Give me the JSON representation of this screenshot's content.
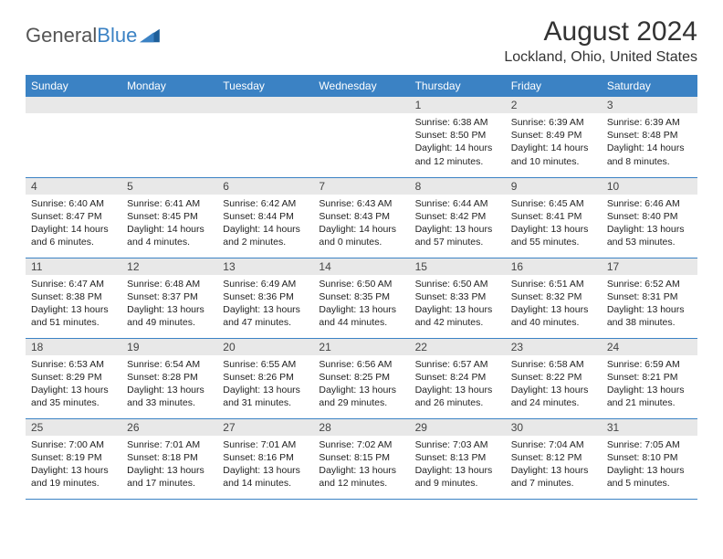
{
  "logo": {
    "text1": "General",
    "text2": "Blue"
  },
  "title": "August 2024",
  "location": "Lockland, Ohio, United States",
  "colors": {
    "header_bg": "#3b82c4",
    "header_text": "#ffffff",
    "daynum_bg": "#e8e8e8",
    "border": "#3b82c4",
    "logo_gray": "#555555",
    "logo_blue": "#3b82c4"
  },
  "weekdays": [
    "Sunday",
    "Monday",
    "Tuesday",
    "Wednesday",
    "Thursday",
    "Friday",
    "Saturday"
  ],
  "weeks": [
    [
      {
        "day": "",
        "sunrise": "",
        "sunset": "",
        "daylight": ""
      },
      {
        "day": "",
        "sunrise": "",
        "sunset": "",
        "daylight": ""
      },
      {
        "day": "",
        "sunrise": "",
        "sunset": "",
        "daylight": ""
      },
      {
        "day": "",
        "sunrise": "",
        "sunset": "",
        "daylight": ""
      },
      {
        "day": "1",
        "sunrise": "Sunrise: 6:38 AM",
        "sunset": "Sunset: 8:50 PM",
        "daylight": "Daylight: 14 hours and 12 minutes."
      },
      {
        "day": "2",
        "sunrise": "Sunrise: 6:39 AM",
        "sunset": "Sunset: 8:49 PM",
        "daylight": "Daylight: 14 hours and 10 minutes."
      },
      {
        "day": "3",
        "sunrise": "Sunrise: 6:39 AM",
        "sunset": "Sunset: 8:48 PM",
        "daylight": "Daylight: 14 hours and 8 minutes."
      }
    ],
    [
      {
        "day": "4",
        "sunrise": "Sunrise: 6:40 AM",
        "sunset": "Sunset: 8:47 PM",
        "daylight": "Daylight: 14 hours and 6 minutes."
      },
      {
        "day": "5",
        "sunrise": "Sunrise: 6:41 AM",
        "sunset": "Sunset: 8:45 PM",
        "daylight": "Daylight: 14 hours and 4 minutes."
      },
      {
        "day": "6",
        "sunrise": "Sunrise: 6:42 AM",
        "sunset": "Sunset: 8:44 PM",
        "daylight": "Daylight: 14 hours and 2 minutes."
      },
      {
        "day": "7",
        "sunrise": "Sunrise: 6:43 AM",
        "sunset": "Sunset: 8:43 PM",
        "daylight": "Daylight: 14 hours and 0 minutes."
      },
      {
        "day": "8",
        "sunrise": "Sunrise: 6:44 AM",
        "sunset": "Sunset: 8:42 PM",
        "daylight": "Daylight: 13 hours and 57 minutes."
      },
      {
        "day": "9",
        "sunrise": "Sunrise: 6:45 AM",
        "sunset": "Sunset: 8:41 PM",
        "daylight": "Daylight: 13 hours and 55 minutes."
      },
      {
        "day": "10",
        "sunrise": "Sunrise: 6:46 AM",
        "sunset": "Sunset: 8:40 PM",
        "daylight": "Daylight: 13 hours and 53 minutes."
      }
    ],
    [
      {
        "day": "11",
        "sunrise": "Sunrise: 6:47 AM",
        "sunset": "Sunset: 8:38 PM",
        "daylight": "Daylight: 13 hours and 51 minutes."
      },
      {
        "day": "12",
        "sunrise": "Sunrise: 6:48 AM",
        "sunset": "Sunset: 8:37 PM",
        "daylight": "Daylight: 13 hours and 49 minutes."
      },
      {
        "day": "13",
        "sunrise": "Sunrise: 6:49 AM",
        "sunset": "Sunset: 8:36 PM",
        "daylight": "Daylight: 13 hours and 47 minutes."
      },
      {
        "day": "14",
        "sunrise": "Sunrise: 6:50 AM",
        "sunset": "Sunset: 8:35 PM",
        "daylight": "Daylight: 13 hours and 44 minutes."
      },
      {
        "day": "15",
        "sunrise": "Sunrise: 6:50 AM",
        "sunset": "Sunset: 8:33 PM",
        "daylight": "Daylight: 13 hours and 42 minutes."
      },
      {
        "day": "16",
        "sunrise": "Sunrise: 6:51 AM",
        "sunset": "Sunset: 8:32 PM",
        "daylight": "Daylight: 13 hours and 40 minutes."
      },
      {
        "day": "17",
        "sunrise": "Sunrise: 6:52 AM",
        "sunset": "Sunset: 8:31 PM",
        "daylight": "Daylight: 13 hours and 38 minutes."
      }
    ],
    [
      {
        "day": "18",
        "sunrise": "Sunrise: 6:53 AM",
        "sunset": "Sunset: 8:29 PM",
        "daylight": "Daylight: 13 hours and 35 minutes."
      },
      {
        "day": "19",
        "sunrise": "Sunrise: 6:54 AM",
        "sunset": "Sunset: 8:28 PM",
        "daylight": "Daylight: 13 hours and 33 minutes."
      },
      {
        "day": "20",
        "sunrise": "Sunrise: 6:55 AM",
        "sunset": "Sunset: 8:26 PM",
        "daylight": "Daylight: 13 hours and 31 minutes."
      },
      {
        "day": "21",
        "sunrise": "Sunrise: 6:56 AM",
        "sunset": "Sunset: 8:25 PM",
        "daylight": "Daylight: 13 hours and 29 minutes."
      },
      {
        "day": "22",
        "sunrise": "Sunrise: 6:57 AM",
        "sunset": "Sunset: 8:24 PM",
        "daylight": "Daylight: 13 hours and 26 minutes."
      },
      {
        "day": "23",
        "sunrise": "Sunrise: 6:58 AM",
        "sunset": "Sunset: 8:22 PM",
        "daylight": "Daylight: 13 hours and 24 minutes."
      },
      {
        "day": "24",
        "sunrise": "Sunrise: 6:59 AM",
        "sunset": "Sunset: 8:21 PM",
        "daylight": "Daylight: 13 hours and 21 minutes."
      }
    ],
    [
      {
        "day": "25",
        "sunrise": "Sunrise: 7:00 AM",
        "sunset": "Sunset: 8:19 PM",
        "daylight": "Daylight: 13 hours and 19 minutes."
      },
      {
        "day": "26",
        "sunrise": "Sunrise: 7:01 AM",
        "sunset": "Sunset: 8:18 PM",
        "daylight": "Daylight: 13 hours and 17 minutes."
      },
      {
        "day": "27",
        "sunrise": "Sunrise: 7:01 AM",
        "sunset": "Sunset: 8:16 PM",
        "daylight": "Daylight: 13 hours and 14 minutes."
      },
      {
        "day": "28",
        "sunrise": "Sunrise: 7:02 AM",
        "sunset": "Sunset: 8:15 PM",
        "daylight": "Daylight: 13 hours and 12 minutes."
      },
      {
        "day": "29",
        "sunrise": "Sunrise: 7:03 AM",
        "sunset": "Sunset: 8:13 PM",
        "daylight": "Daylight: 13 hours and 9 minutes."
      },
      {
        "day": "30",
        "sunrise": "Sunrise: 7:04 AM",
        "sunset": "Sunset: 8:12 PM",
        "daylight": "Daylight: 13 hours and 7 minutes."
      },
      {
        "day": "31",
        "sunrise": "Sunrise: 7:05 AM",
        "sunset": "Sunset: 8:10 PM",
        "daylight": "Daylight: 13 hours and 5 minutes."
      }
    ]
  ]
}
